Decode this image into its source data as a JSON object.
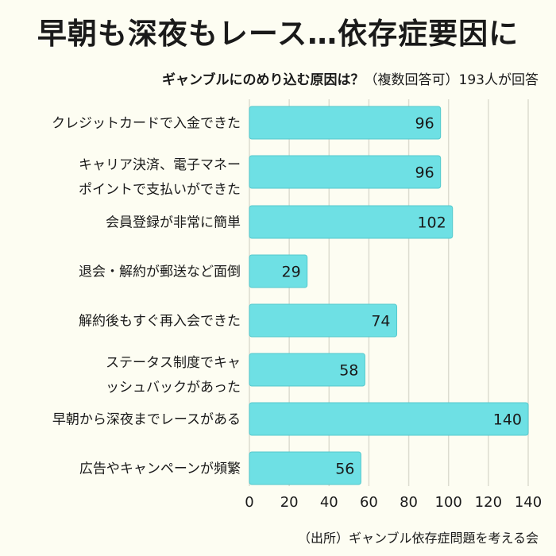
{
  "title": "早朝も深夜もレース…依存症要因に",
  "subtitle_bold": "ギャンブルにのめり込む原因は？",
  "subtitle_rest": "（複数回答可）193人が回答",
  "source": "（出所）ギャンブル依存症問題を考える会",
  "colors": {
    "bar": "#6ee0e4",
    "bar_border": "#55c9cd",
    "grid": "#dcdcd0",
    "text": "#1a1a1a"
  },
  "chart_data": {
    "type": "bar",
    "orientation": "horizontal",
    "categories": [
      [
        "クレジットカードで入金できた"
      ],
      [
        "キャリア決済、電子マネー",
        "ポイントで支払いができた"
      ],
      [
        "会員登録が非常に簡単"
      ],
      [
        "退会・解約が郵送など面倒"
      ],
      [
        "解約後もすぐ再入会できた"
      ],
      [
        "ステータス制度でキャ",
        "ッシュバックがあった"
      ],
      [
        "早朝から深夜までレースがある"
      ],
      [
        "広告やキャンペーンが頻繁"
      ]
    ],
    "values": [
      96,
      96,
      102,
      29,
      74,
      58,
      140,
      56
    ],
    "xlim": [
      0,
      140
    ],
    "xticks": [
      0,
      20,
      40,
      60,
      80,
      100,
      120,
      140
    ],
    "grid": true
  }
}
